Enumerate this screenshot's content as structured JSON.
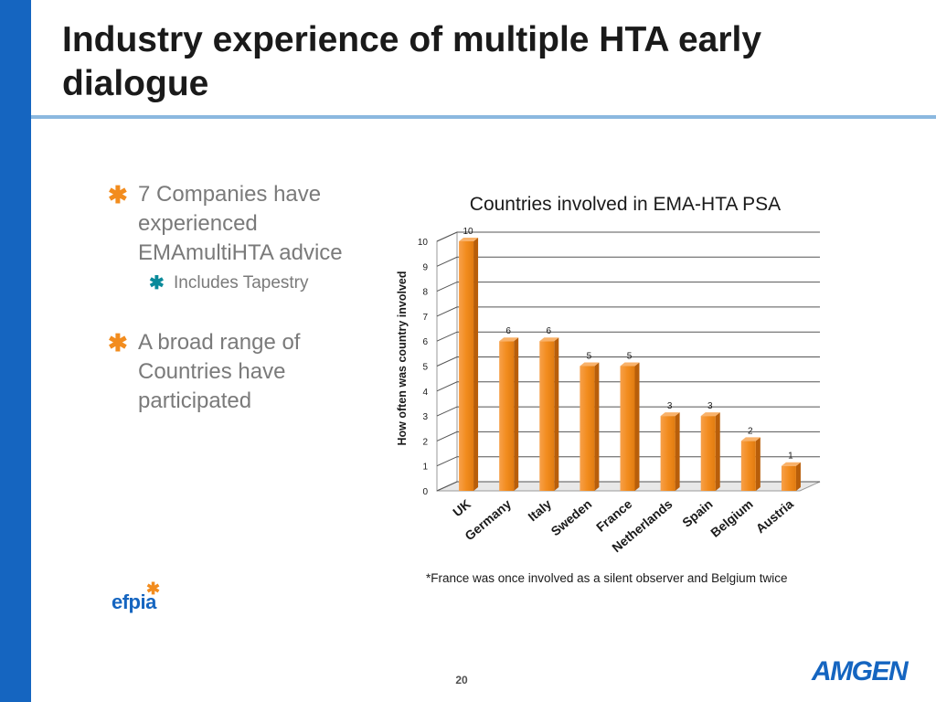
{
  "slide": {
    "title": "Industry experience of multiple HTA early dialogue",
    "page_number": "20",
    "footnote": "*France was once involved as a silent observer and Belgium twice"
  },
  "bullets": [
    {
      "text": "7 Companies have experienced EMAmultiHTA advice",
      "sub": [
        "Includes Tapestry"
      ]
    },
    {
      "text": "A broad range of Countries have participated",
      "sub": []
    }
  ],
  "logos": {
    "left": "efpia",
    "right": "AMGEN"
  },
  "colors": {
    "accent_blue": "#1565c0",
    "bar_orange": "#f28c1e",
    "bullet_star": "#f28c1e",
    "sub_star": "#0a8a9a"
  },
  "chart_data": {
    "type": "bar",
    "title": "Countries involved in EMA-HTA PSA",
    "xlabel": "",
    "ylabel": "How often was country involved",
    "categories": [
      "UK",
      "Germany",
      "Italy",
      "Sweden",
      "France",
      "Netherlands",
      "Spain",
      "Belgium",
      "Austria"
    ],
    "values": [
      10,
      6,
      6,
      5,
      5,
      3,
      3,
      2,
      1
    ],
    "ylim": [
      0,
      10
    ],
    "yticks": [
      0,
      1,
      2,
      3,
      4,
      5,
      6,
      7,
      8,
      9,
      10
    ],
    "grid": true,
    "data_labels": true
  }
}
